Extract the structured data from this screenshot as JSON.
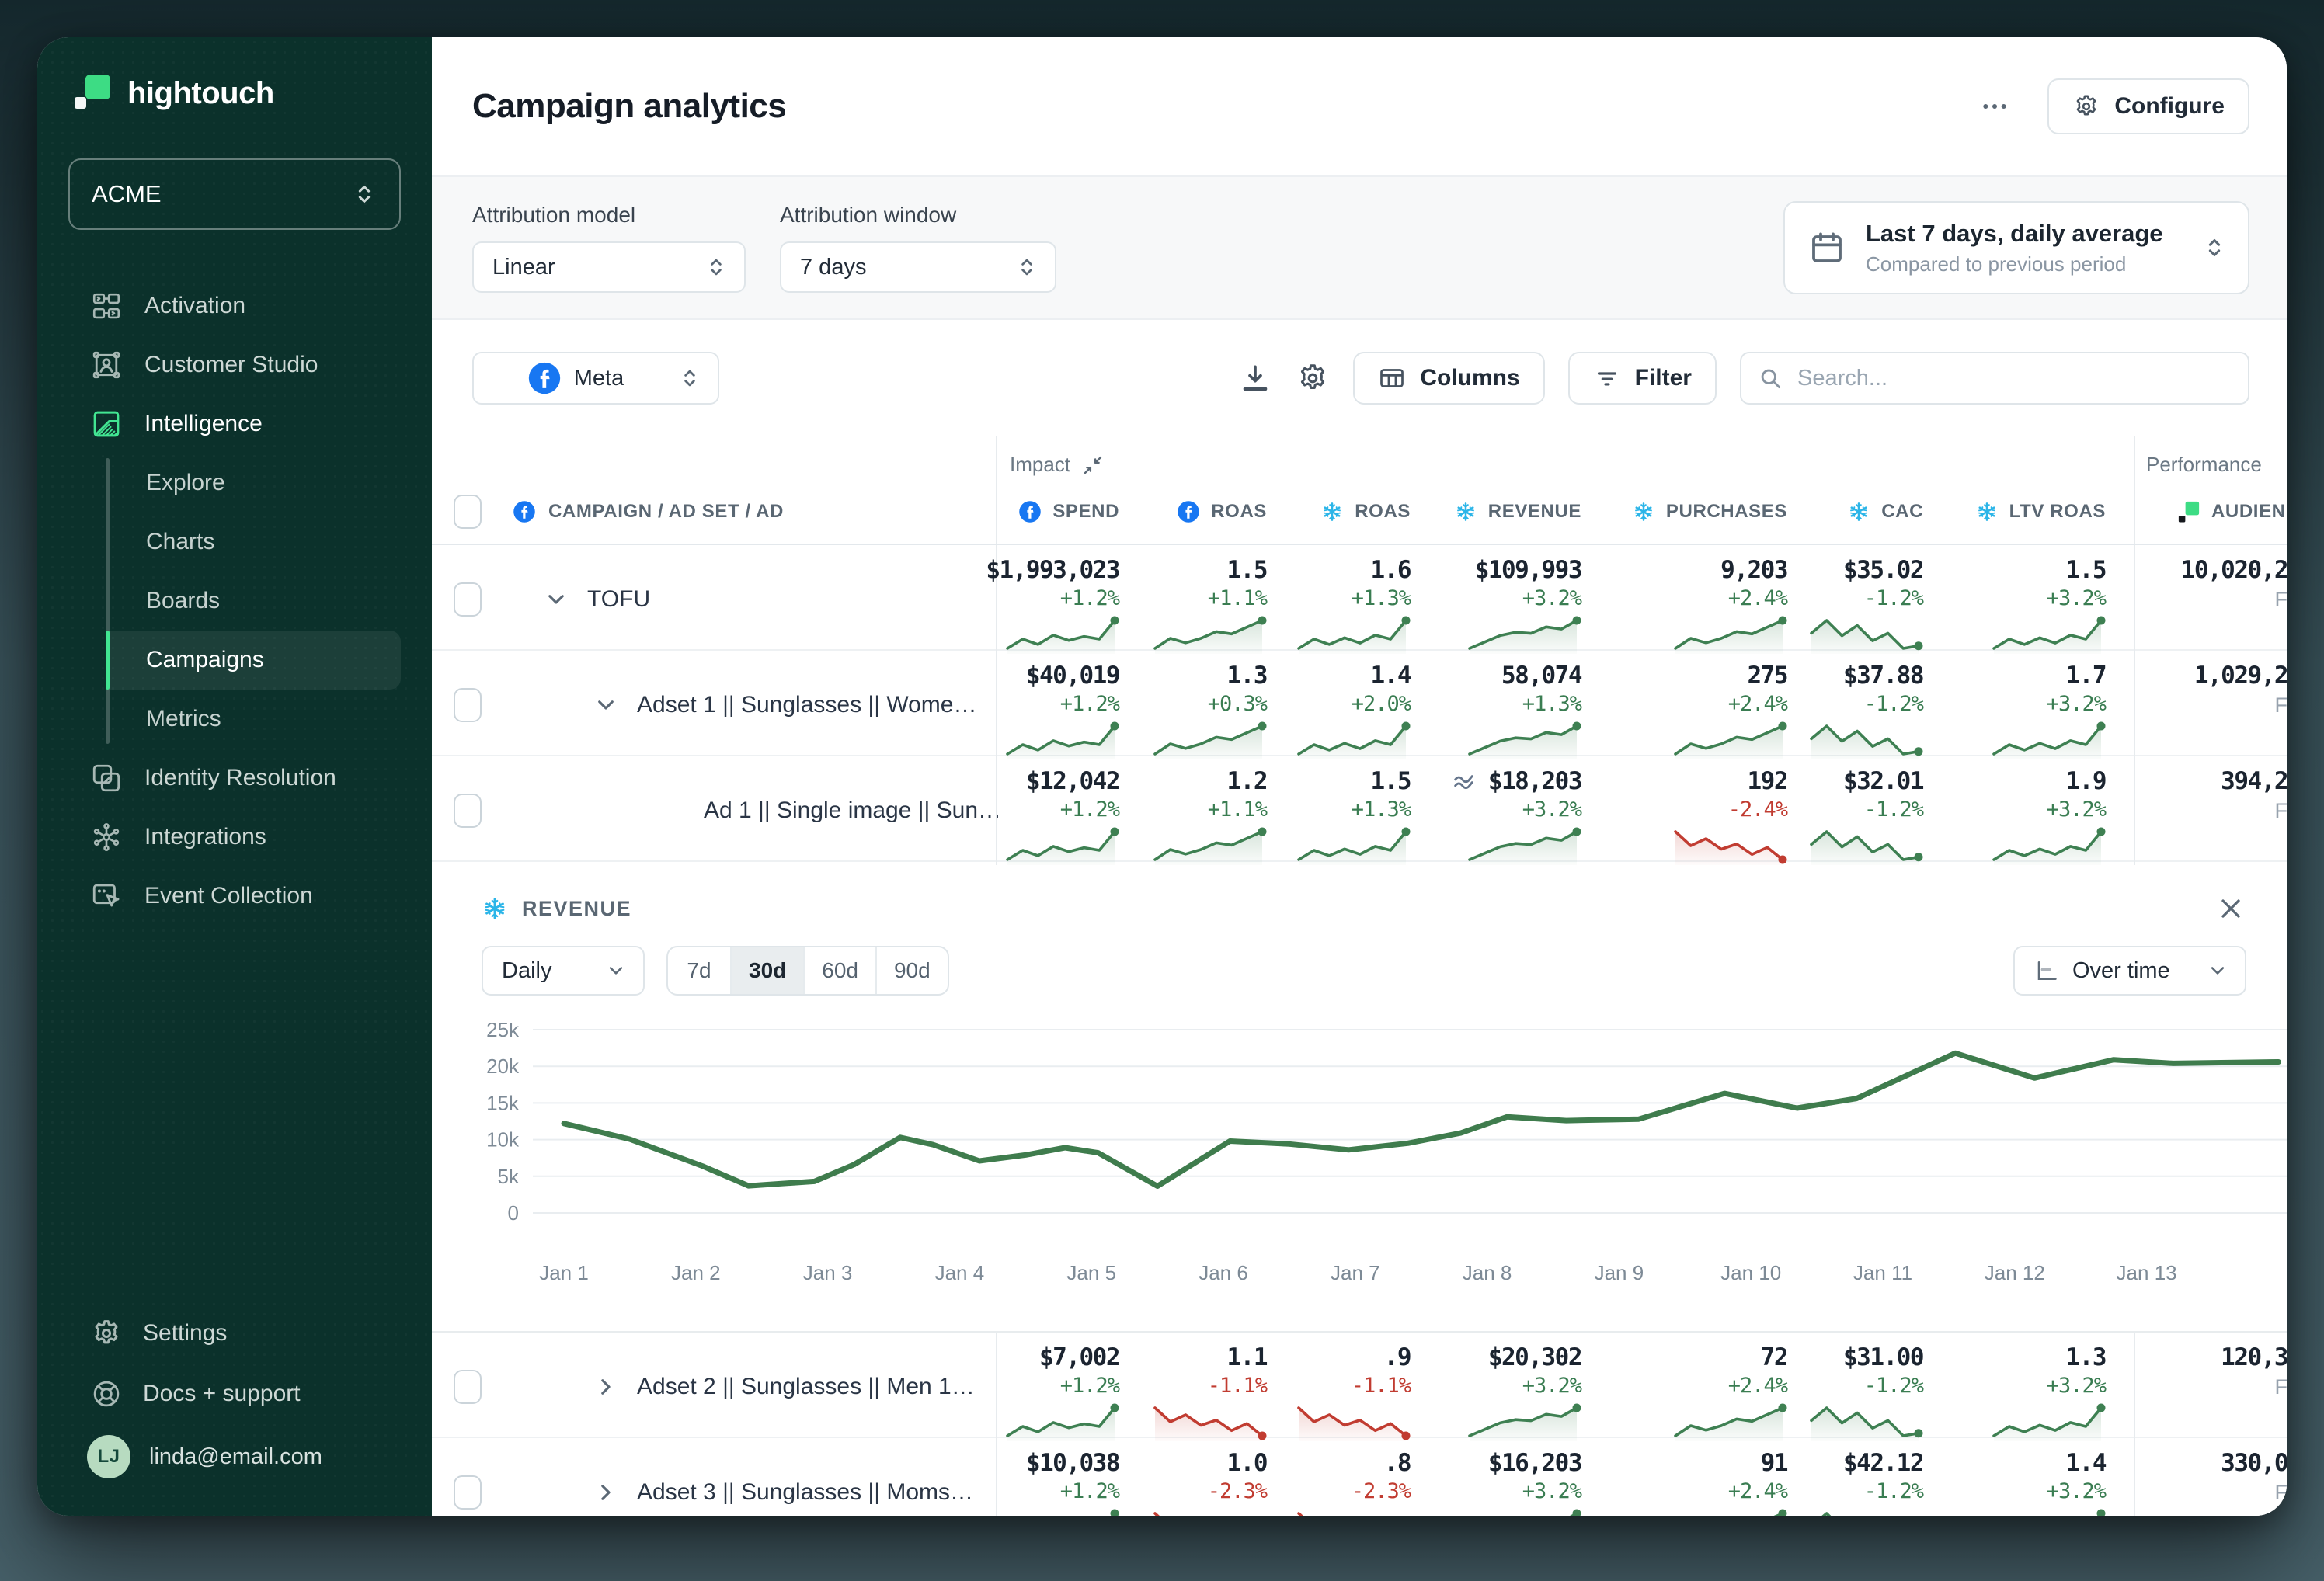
{
  "app": {
    "brand": "hightouch",
    "workspace": "ACME"
  },
  "colors": {
    "accent_green": "#42e692",
    "logo_green": "#3ddc84",
    "line_green": "#3f7c4d",
    "delta_green": "#3a7d52",
    "delta_red": "#c13c31",
    "facebook_blue": "#1877f2",
    "snowflake_blue": "#2bb5e8",
    "sidebar_bg": "#0b312b"
  },
  "sidebar": {
    "items": [
      {
        "id": "activation",
        "label": "Activation",
        "icon": "activation"
      },
      {
        "id": "customer-studio",
        "label": "Customer Studio",
        "icon": "customer-studio"
      },
      {
        "id": "intelligence",
        "label": "Intelligence",
        "icon": "intelligence",
        "section_active": true
      },
      {
        "id": "explore",
        "label": "Explore",
        "sub": true
      },
      {
        "id": "charts",
        "label": "Charts",
        "sub": true
      },
      {
        "id": "boards",
        "label": "Boards",
        "sub": true
      },
      {
        "id": "campaigns",
        "label": "Campaigns",
        "sub": true,
        "active": true
      },
      {
        "id": "metrics",
        "label": "Metrics",
        "sub": true
      },
      {
        "id": "identity-resolution",
        "label": "Identity Resolution",
        "icon": "identity"
      },
      {
        "id": "integrations",
        "label": "Integrations",
        "icon": "integrations"
      },
      {
        "id": "event-collection",
        "label": "Event Collection",
        "icon": "event"
      }
    ],
    "footer": [
      {
        "id": "settings",
        "label": "Settings",
        "icon": "gear"
      },
      {
        "id": "docs-support",
        "label": "Docs + support",
        "icon": "lifering"
      }
    ],
    "user": {
      "initials": "LJ",
      "email": "linda@email.com"
    }
  },
  "header": {
    "title": "Campaign analytics",
    "configure_label": "Configure"
  },
  "filters": {
    "attribution_model": {
      "label": "Attribution model",
      "value": "Linear"
    },
    "attribution_window": {
      "label": "Attribution window",
      "value": "7 days"
    },
    "date_range": {
      "value": "Last 7 days, daily average",
      "compare": "Compared to previous period"
    }
  },
  "toolbar": {
    "source": {
      "value": "Meta"
    },
    "columns_label": "Columns",
    "filter_label": "Filter",
    "search_placeholder": "Search..."
  },
  "table": {
    "name_header": "CAMPAIGN / AD SET / AD",
    "group_headers": [
      {
        "label": "Impact"
      },
      {
        "label": "Performance"
      }
    ],
    "columns": [
      {
        "id": "spend",
        "label": "SPEND",
        "icon": "facebook"
      },
      {
        "id": "roas_fb",
        "label": "ROAS",
        "icon": "facebook"
      },
      {
        "id": "roas_sf",
        "label": "ROAS",
        "icon": "snowflake"
      },
      {
        "id": "revenue",
        "label": "REVENUE",
        "icon": "snowflake"
      },
      {
        "id": "purchases",
        "label": "PURCHASES",
        "icon": "snowflake"
      },
      {
        "id": "cac",
        "label": "CAC",
        "icon": "snowflake"
      },
      {
        "id": "ltv_roas",
        "label": "LTV ROAS",
        "icon": "snowflake"
      },
      {
        "id": "audience",
        "label": "AUDIEN",
        "icon": "hightouch"
      }
    ],
    "spark_shapes": {
      "upA": [
        3.2,
        4.6,
        3.8,
        5.2,
        4.4,
        5.0,
        4.6,
        7.4
      ],
      "upB": [
        2.6,
        4.4,
        3.6,
        4.4,
        5.6,
        5.2,
        6.4,
        7.6
      ],
      "upC": [
        3.0,
        4.4,
        3.6,
        4.6,
        3.8,
        5.0,
        4.4,
        7.2
      ],
      "rev": [
        2.4,
        3.6,
        4.8,
        5.4,
        5.2,
        6.4,
        6.0,
        7.6
      ],
      "cac": [
        6.8,
        7.8,
        6.6,
        7.4,
        6.2,
        6.8,
        5.6,
        5.8
      ],
      "down": [
        7.4,
        5.8,
        6.6,
        5.4,
        6.0,
        4.8,
        5.6,
        4.2
      ]
    },
    "rows": [
      {
        "name": "TOFU",
        "level": 0,
        "expand": "down",
        "section": "a",
        "cells": [
          {
            "v": "$1,993,023",
            "d": "+1.2%",
            "tone": "pos",
            "spark": "upA"
          },
          {
            "v": "1.5",
            "d": "+1.1%",
            "tone": "pos",
            "spark": "upB"
          },
          {
            "v": "1.6",
            "d": "+1.3%",
            "tone": "pos",
            "spark": "upC"
          },
          {
            "v": "$109,993",
            "d": "+3.2%",
            "tone": "pos",
            "spark": "rev"
          },
          {
            "v": "9,203",
            "d": "+2.4%",
            "tone": "pos",
            "spark": "upB"
          },
          {
            "v": "$35.02",
            "d": "-1.2%",
            "tone": "pos",
            "spark": "cac"
          },
          {
            "v": "1.5",
            "d": "+3.2%",
            "tone": "pos",
            "spark": "upC"
          },
          {
            "v": "10,020,2",
            "sub": "F"
          }
        ]
      },
      {
        "name": "Adset 1 || Sunglasses || Wome…",
        "level": 1,
        "expand": "down",
        "section": "a",
        "cells": [
          {
            "v": "$40,019",
            "d": "+1.2%",
            "tone": "pos",
            "spark": "upA"
          },
          {
            "v": "1.3",
            "d": "+0.3%",
            "tone": "pos",
            "spark": "upB"
          },
          {
            "v": "1.4",
            "d": "+2.0%",
            "tone": "pos",
            "spark": "upC"
          },
          {
            "v": "58,074",
            "d": "+1.3%",
            "tone": "pos",
            "spark": "rev"
          },
          {
            "v": "275",
            "d": "+2.4%",
            "tone": "pos",
            "spark": "upB"
          },
          {
            "v": "$37.88",
            "d": "-1.2%",
            "tone": "pos",
            "spark": "cac"
          },
          {
            "v": "1.7",
            "d": "+3.2%",
            "tone": "pos",
            "spark": "upC"
          },
          {
            "v": "1,029,2",
            "sub": "F"
          }
        ]
      },
      {
        "name": "Ad 1 || Single image || Sun…",
        "level": 2,
        "expand": null,
        "section": "a",
        "cells": [
          {
            "v": "$12,042",
            "d": "+1.2%",
            "tone": "pos",
            "spark": "upA"
          },
          {
            "v": "1.2",
            "d": "+1.1%",
            "tone": "pos",
            "spark": "upB"
          },
          {
            "v": "1.5",
            "d": "+1.3%",
            "tone": "pos",
            "spark": "upC"
          },
          {
            "v": "$18,203",
            "d": "+3.2%",
            "tone": "pos",
            "spark": "rev",
            "selected": true
          },
          {
            "v": "192",
            "d": "-2.4%",
            "tone": "neg",
            "spark": "down"
          },
          {
            "v": "$32.01",
            "d": "-1.2%",
            "tone": "pos",
            "spark": "cac"
          },
          {
            "v": "1.9",
            "d": "+3.2%",
            "tone": "pos",
            "spark": "upC"
          },
          {
            "v": "394,2",
            "sub": "F"
          }
        ]
      },
      {
        "name": "Adset 2 || Sunglasses || Men 1…",
        "level": 1,
        "expand": "right",
        "section": "b",
        "cells": [
          {
            "v": "$7,002",
            "d": "+1.2%",
            "tone": "pos",
            "spark": "upA"
          },
          {
            "v": "1.1",
            "d": "-1.1%",
            "tone": "neg",
            "spark": "down"
          },
          {
            "v": ".9",
            "d": "-1.1%",
            "tone": "neg",
            "spark": "down"
          },
          {
            "v": "$20,302",
            "d": "+3.2%",
            "tone": "pos",
            "spark": "rev"
          },
          {
            "v": "72",
            "d": "+2.4%",
            "tone": "pos",
            "spark": "upB"
          },
          {
            "v": "$31.00",
            "d": "-1.2%",
            "tone": "pos",
            "spark": "cac"
          },
          {
            "v": "1.3",
            "d": "+3.2%",
            "tone": "pos",
            "spark": "upC"
          },
          {
            "v": "120,3",
            "sub": "F"
          }
        ]
      },
      {
        "name": "Adset 3 || Sunglasses || Moms…",
        "level": 1,
        "expand": "right",
        "section": "b",
        "cells": [
          {
            "v": "$10,038",
            "d": "+1.2%",
            "tone": "pos",
            "spark": "upA"
          },
          {
            "v": "1.0",
            "d": "-2.3%",
            "tone": "neg",
            "spark": "down"
          },
          {
            "v": ".8",
            "d": "-2.3%",
            "tone": "neg",
            "spark": "down"
          },
          {
            "v": "$16,203",
            "d": "+3.2%",
            "tone": "pos",
            "spark": "rev"
          },
          {
            "v": "91",
            "d": "+2.4%",
            "tone": "pos",
            "spark": "upB"
          },
          {
            "v": "$42.12",
            "d": "-1.2%",
            "tone": "pos",
            "spark": "cac"
          },
          {
            "v": "1.4",
            "d": "+3.2%",
            "tone": "pos",
            "spark": "upC"
          },
          {
            "v": "330,0",
            "sub": "F"
          }
        ]
      }
    ]
  },
  "revenue_panel": {
    "title": "REVENUE",
    "granularity": "Daily",
    "ranges": [
      "7d",
      "30d",
      "60d",
      "90d"
    ],
    "active_range": "30d",
    "view": "Over time",
    "chart_data": {
      "type": "line",
      "title": "REVENUE",
      "ylabel": "",
      "xlabel": "",
      "ylim": [
        0,
        25000
      ],
      "grid": "horizontal",
      "legend": "none",
      "y_ticks": [
        [
          0,
          "0"
        ],
        [
          5000,
          "5k"
        ],
        [
          10000,
          "10k"
        ],
        [
          15000,
          "15k"
        ],
        [
          20000,
          "20k"
        ],
        [
          25000,
          "25k"
        ]
      ],
      "x_tick_labels": [
        "Jan 1",
        "Jan 2",
        "Jan 3",
        "Jan 4",
        "Jan 5",
        "Jan 6",
        "Jan 7",
        "Jan 8",
        "Jan 9",
        "Jan 10",
        "Jan 11",
        "Jan 12",
        "Jan 13"
      ],
      "series": [
        {
          "name": "Revenue",
          "color": "#3f7c4d",
          "x": [
            1.0,
            1.5,
            2.05,
            2.4,
            2.9,
            3.2,
            3.55,
            3.8,
            4.15,
            4.5,
            4.8,
            5.05,
            5.5,
            6.05,
            6.5,
            6.95,
            7.4,
            7.8,
            8.15,
            8.6,
            9.15,
            9.8,
            10.35,
            10.8,
            11.55,
            12.15,
            12.75,
            13.2,
            14.0
          ],
          "values": [
            12200,
            10050,
            6400,
            3700,
            4300,
            6600,
            10300,
            9300,
            7100,
            7900,
            8900,
            8200,
            3650,
            9800,
            9400,
            8600,
            9500,
            10900,
            13100,
            12600,
            12800,
            16300,
            14300,
            15600,
            21800,
            18400,
            20900,
            20400,
            20600
          ]
        }
      ]
    }
  }
}
